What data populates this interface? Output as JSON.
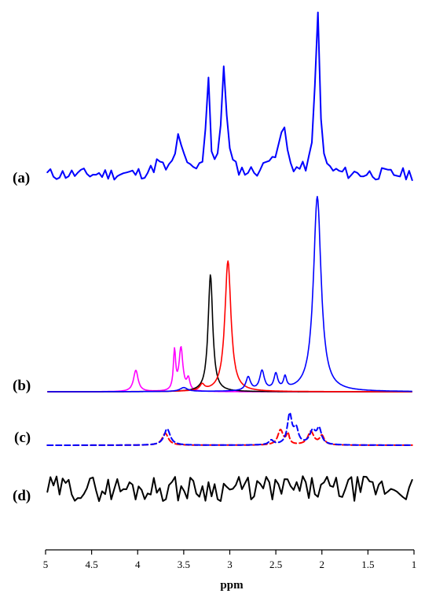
{
  "chart_data": {
    "type": "line",
    "xlabel": "ppm",
    "xlim": [
      5,
      1
    ],
    "x_reversed": true,
    "xticks": [
      5,
      4.5,
      4,
      3.5,
      3,
      2.5,
      2,
      1.5,
      1
    ],
    "xtick_labels": [
      "5",
      "4.5",
      "4",
      "3.5",
      "3",
      "2.5",
      "2",
      "1.5",
      "1"
    ],
    "colors": {
      "blue": "#0000ff",
      "red": "#ff0000",
      "black": "#000000",
      "magenta": "#ff00ff"
    },
    "panels": [
      {
        "label": "(a)",
        "series": [
          {
            "color": "blue",
            "style": "solid",
            "noise_seed": 11,
            "baseline": 0.05,
            "noise": 0.035,
            "peaks": [
              [
                3.24,
                0.62,
                0.02
              ],
              [
                3.06,
                0.62,
                0.03
              ],
              [
                2.05,
                1.0,
                0.025
              ],
              [
                3.55,
                0.22,
                0.04
              ],
              [
                2.42,
                0.26,
                0.04
              ],
              [
                2.55,
                0.1,
                0.05
              ],
              [
                3.78,
                0.06,
                0.05
              ]
            ]
          }
        ]
      },
      {
        "label": "(b)",
        "series": [
          {
            "color": "magenta",
            "style": "solid",
            "peaks": [
              [
                4.02,
                0.11,
                0.03
              ],
              [
                3.6,
                0.2,
                0.015
              ],
              [
                3.53,
                0.22,
                0.025
              ],
              [
                3.45,
                0.06,
                0.02
              ]
            ]
          },
          {
            "color": "black",
            "style": "solid",
            "peaks": [
              [
                3.21,
                0.6,
                0.03
              ]
            ]
          },
          {
            "color": "red",
            "style": "solid",
            "peaks": [
              [
                3.02,
                0.67,
                0.04
              ],
              [
                3.3,
                0.03,
                0.03
              ]
            ]
          },
          {
            "color": "blue",
            "style": "solid",
            "peaks": [
              [
                2.05,
                1.0,
                0.05
              ],
              [
                2.8,
                0.07,
                0.03
              ],
              [
                2.65,
                0.1,
                0.03
              ],
              [
                2.5,
                0.08,
                0.025
              ],
              [
                2.4,
                0.06,
                0.02
              ],
              [
                3.5,
                0.02,
                0.05
              ]
            ]
          }
        ]
      },
      {
        "label": "(c)",
        "series": [
          {
            "color": "red",
            "style": "dashed",
            "peaks": [
              [
                3.7,
                0.4,
                0.04
              ],
              [
                2.45,
                0.5,
                0.035
              ],
              [
                2.37,
                0.35,
                0.02
              ],
              [
                2.12,
                0.45,
                0.04
              ],
              [
                2.0,
                0.3,
                0.03
              ]
            ]
          },
          {
            "color": "blue",
            "style": "dashed",
            "peaks": [
              [
                3.68,
                0.55,
                0.04
              ],
              [
                2.35,
                1.0,
                0.03
              ],
              [
                2.28,
                0.5,
                0.03
              ],
              [
                2.1,
                0.45,
                0.04
              ],
              [
                2.03,
                0.5,
                0.03
              ],
              [
                2.55,
                0.15,
                0.03
              ]
            ]
          }
        ]
      },
      {
        "label": "(d)",
        "series": [
          {
            "color": "black",
            "style": "solid",
            "noise_seed": 29,
            "baseline": 0.5,
            "noise": 0.35
          }
        ]
      }
    ]
  }
}
